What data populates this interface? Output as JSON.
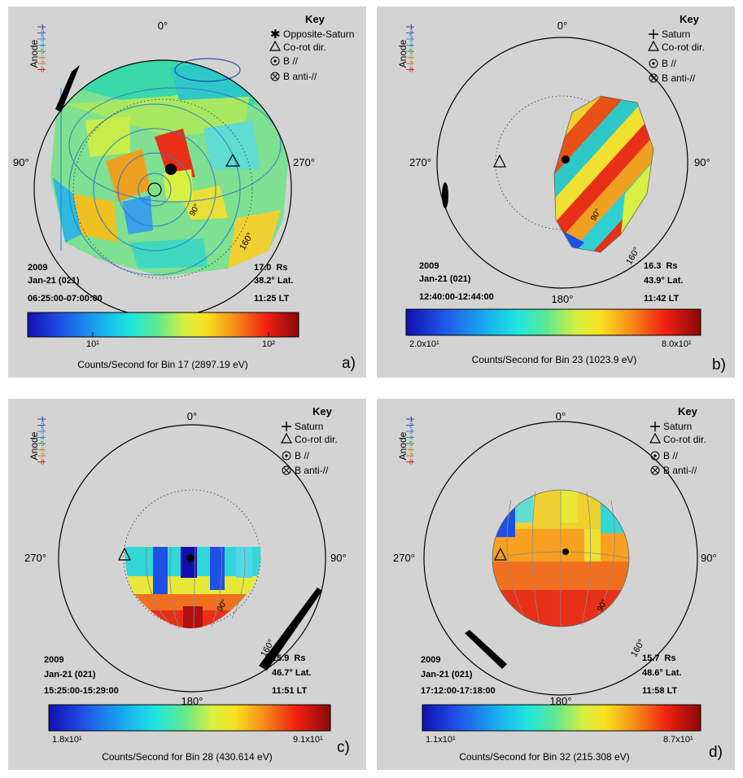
{
  "common": {
    "key_title": "Key",
    "anode_label": "Anode",
    "anode_numbers": [
      "1",
      "2",
      "3",
      "4",
      "5",
      "6",
      "7",
      "8"
    ],
    "anode_colors": [
      "#1e3c8c",
      "#2050c0",
      "#2a7acc",
      "#20a0a0",
      "#309040",
      "#b0a020",
      "#d07020",
      "#c02020"
    ],
    "key_corot": "Co-rot dir.",
    "key_bpar": "B //",
    "key_banti": "B anti-//",
    "angle_0": "0°",
    "angle_180": "180°",
    "angle_160": "160°",
    "angle_90": "90°"
  },
  "panels": [
    {
      "letter": "a)",
      "key_first": "Opposite-Saturn",
      "left_angle": "90°",
      "right_angle": "270°",
      "year": "2009",
      "date": "Jan-21 (021)",
      "time_range": "06:25:00-07:00:00",
      "radius": "17.0",
      "radius_unit": "Rs",
      "lat": "38.2° Lat.",
      "lt": "11:25 LT",
      "cb_min": "",
      "cb_max": "",
      "cb_tick1": "10¹",
      "cb_tick2": "10²",
      "cb_caption": "Counts/Second for Bin 17 (2897.19 eV)"
    },
    {
      "letter": "b)",
      "key_first": "Saturn",
      "left_angle": "270°",
      "right_angle": "90°",
      "year": "2009",
      "date": "Jan-21 (021)",
      "time_range": "12:40:00-12:44:00",
      "radius": "16.3",
      "radius_unit": "Rs",
      "lat": "43.9° Lat.",
      "lt": "11:42 LT",
      "cb_min": "2.0x10¹",
      "cb_max": "8.0x10¹",
      "cb_tick1": "",
      "cb_tick2": "",
      "cb_caption": "Counts/Second for Bin 23 (1023.9 eV)"
    },
    {
      "letter": "c)",
      "key_first": "Saturn",
      "left_angle": "270°",
      "right_angle": "90°",
      "year": "2009",
      "date": "Jan-21 (021)",
      "time_range": "15:25:00-15:29:00",
      "radius": "15.9",
      "radius_unit": "Rs",
      "lat": "46.7° Lat.",
      "lt": "11:51 LT",
      "cb_min": "1.8x10¹",
      "cb_max": "9.1x10¹",
      "cb_tick1": "",
      "cb_tick2": "",
      "cb_caption": "Counts/Second for Bin 28 (430.614 eV)"
    },
    {
      "letter": "d)",
      "key_first": "Saturn",
      "left_angle": "270°",
      "right_angle": "90°",
      "year": "2009",
      "date": "Jan-21 (021)",
      "time_range": "17:12:00-17:18:00",
      "radius": "15.7",
      "radius_unit": "Rs",
      "lat": "48.6° Lat.",
      "lt": "11:58 LT",
      "cb_min": "1.1x10¹",
      "cb_max": "8.7x10¹",
      "cb_tick1": "",
      "cb_tick2": "",
      "cb_caption": "Counts/Second for Bin 32 (215.308 eV)"
    }
  ],
  "chart_data": [
    {
      "type": "heatmap",
      "projection": "polar sky map",
      "colorscale": "log, blue-cyan-yellow-red",
      "colorbar_ticks": [
        "10¹",
        "10²"
      ],
      "colorbar_label": "Counts/Second for Bin 17 (2897.19 eV)",
      "angle_labels": [
        "0°",
        "90°",
        "270°",
        "180°",
        "160°"
      ],
      "range": "2009 Jan-21 (021) 06:25:00-07:00:00",
      "radius_rs": 17.0,
      "latitude_deg": 38.2,
      "local_time": "11:25 LT"
    },
    {
      "type": "heatmap",
      "projection": "polar sky map",
      "colorscale": "linear, blue-cyan-yellow-red",
      "colorbar_range": [
        20,
        80
      ],
      "colorbar_label": "Counts/Second for Bin 23 (1023.9 eV)",
      "angle_labels": [
        "0°",
        "270°",
        "90°",
        "180°",
        "160°"
      ],
      "range": "2009 Jan-21 (021) 12:40:00-12:44:00",
      "radius_rs": 16.3,
      "latitude_deg": 43.9,
      "local_time": "11:42 LT"
    },
    {
      "type": "heatmap",
      "projection": "polar sky map",
      "colorscale": "linear, blue-cyan-yellow-red",
      "colorbar_range": [
        18,
        91
      ],
      "colorbar_label": "Counts/Second for Bin 28 (430.614 eV)",
      "angle_labels": [
        "0°",
        "270°",
        "90°",
        "180°",
        "160°"
      ],
      "range": "2009 Jan-21 (021) 15:25:00-15:29:00",
      "radius_rs": 15.9,
      "latitude_deg": 46.7,
      "local_time": "11:51 LT"
    },
    {
      "type": "heatmap",
      "projection": "polar sky map",
      "colorscale": "linear, blue-cyan-yellow-red",
      "colorbar_range": [
        11,
        87
      ],
      "colorbar_label": "Counts/Second for Bin 32 (215.308 eV)",
      "angle_labels": [
        "0°",
        "270°",
        "90°",
        "180°",
        "160°"
      ],
      "range": "2009 Jan-21 (021) 17:12:00-17:18:00",
      "radius_rs": 15.7,
      "latitude_deg": 48.6,
      "local_time": "11:58 LT"
    }
  ]
}
